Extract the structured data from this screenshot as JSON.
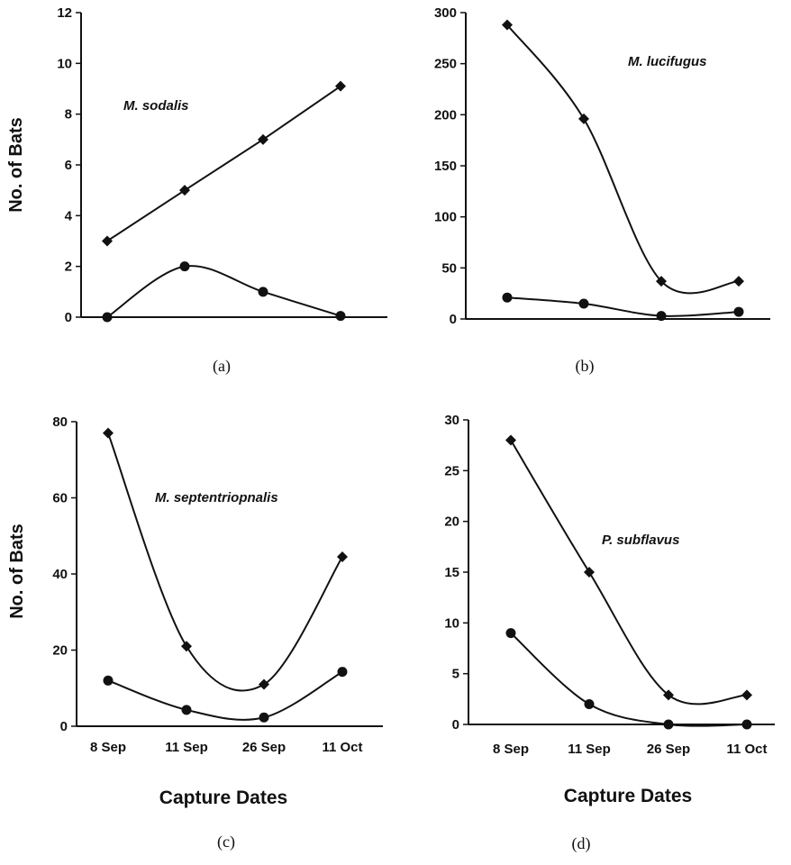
{
  "chart_data": [
    {
      "type": "line",
      "panel_label": "(a)",
      "annotation": "M. sodalis",
      "ylabel": "No. of Bats",
      "xlabel": "",
      "categories": [
        "8 Sep",
        "11 Sep",
        "26 Sep",
        "11 Oct"
      ],
      "show_x_tick_labels": false,
      "yticks": [
        "0",
        "2",
        "4",
        "6",
        "8",
        "10",
        "12"
      ],
      "ylim": [
        0,
        12
      ],
      "series": [
        {
          "marker": "diamond",
          "values": [
            3,
            5,
            7,
            9.1
          ]
        },
        {
          "marker": "circle",
          "values": [
            0,
            2,
            1,
            0.05
          ]
        }
      ]
    },
    {
      "type": "line",
      "panel_label": "(b)",
      "annotation": "M. lucifugus",
      "ylabel": "",
      "xlabel": "",
      "categories": [
        "8 Sep",
        "11 Sep",
        "26 Sep",
        "11 Oct"
      ],
      "show_x_tick_labels": false,
      "yticks": [
        "0",
        "50",
        "100",
        "150",
        "200",
        "250",
        "300"
      ],
      "ylim": [
        0,
        300
      ],
      "series": [
        {
          "marker": "diamond",
          "values": [
            288,
            196,
            37,
            37
          ]
        },
        {
          "marker": "circle",
          "values": [
            21,
            15,
            3,
            7
          ]
        }
      ]
    },
    {
      "type": "line",
      "panel_label": "(c)",
      "annotation": "M. septentriopnalis",
      "ylabel": "No. of Bats",
      "xlabel": "Capture Dates",
      "categories": [
        "8 Sep",
        "11 Sep",
        "26 Sep",
        "11 Oct"
      ],
      "show_x_tick_labels": true,
      "yticks": [
        "0",
        "20",
        "40",
        "60",
        "80"
      ],
      "ylim": [
        0,
        80
      ],
      "series": [
        {
          "marker": "diamond",
          "values": [
            77,
            21,
            11,
            44.5
          ]
        },
        {
          "marker": "circle",
          "values": [
            12,
            4.3,
            2.3,
            14.3
          ]
        }
      ]
    },
    {
      "type": "line",
      "panel_label": "(d)",
      "annotation": "P. subflavus",
      "ylabel": "",
      "xlabel": "Capture Dates",
      "categories": [
        "8 Sep",
        "11 Sep",
        "26 Sep",
        "11 Oct"
      ],
      "show_x_tick_labels": true,
      "yticks": [
        "0",
        "5",
        "10",
        "15",
        "20",
        "25",
        "30"
      ],
      "ylim": [
        0,
        30
      ],
      "series": [
        {
          "marker": "diamond",
          "values": [
            28,
            15,
            2.9,
            2.9
          ]
        },
        {
          "marker": "circle",
          "values": [
            9,
            2,
            0,
            0
          ]
        }
      ]
    }
  ]
}
